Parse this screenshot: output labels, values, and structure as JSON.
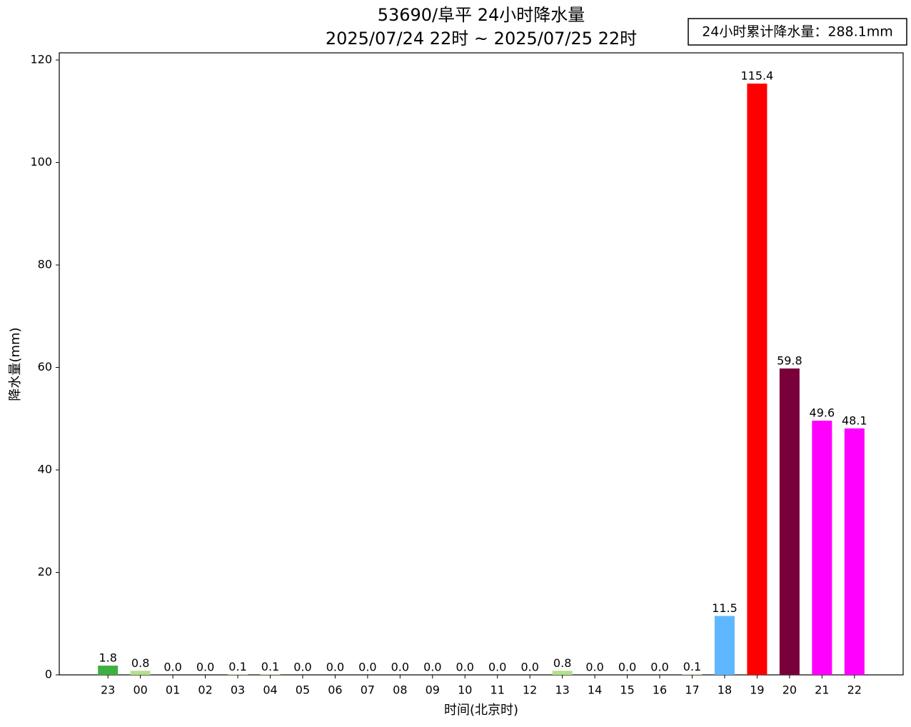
{
  "chart_data": {
    "type": "bar",
    "title": "53690/阜平 24小时降水量",
    "subtitle": "2025/07/24 22时 ~ 2025/07/25 22时",
    "annotation": "24小时累计降水量：288.1mm",
    "xlabel": "时间(北京时)",
    "ylabel": "降水量(mm)",
    "categories": [
      "23",
      "00",
      "01",
      "02",
      "03",
      "04",
      "05",
      "06",
      "07",
      "08",
      "09",
      "10",
      "11",
      "12",
      "13",
      "14",
      "15",
      "16",
      "17",
      "18",
      "19",
      "20",
      "21",
      "22"
    ],
    "values": [
      1.8,
      0.8,
      0,
      0,
      0.1,
      0.1,
      0,
      0,
      0,
      0,
      0,
      0,
      0,
      0,
      0.8,
      0,
      0,
      0,
      0.1,
      11.5,
      115.4,
      59.8,
      49.6,
      48.1
    ],
    "value_labels": [
      "1.8",
      "0.8",
      "0.0",
      "0.0",
      "0.1",
      "0.1",
      "0.0",
      "0.0",
      "0.0",
      "0.0",
      "0.0",
      "0.0",
      "0.0",
      "0.0",
      "0.8",
      "0.0",
      "0.0",
      "0.0",
      "0.1",
      "11.5",
      "115.4",
      "59.8",
      "49.6",
      "48.1"
    ],
    "colors": [
      "#3cb043",
      "#b4e08c",
      "#b4e08c",
      "#b4e08c",
      "#b4e08c",
      "#b4e08c",
      "#b4e08c",
      "#b4e08c",
      "#b4e08c",
      "#b4e08c",
      "#b4e08c",
      "#b4e08c",
      "#b4e08c",
      "#b4e08c",
      "#b4e08c",
      "#b4e08c",
      "#b4e08c",
      "#b4e08c",
      "#b4e08c",
      "#5fb8ff",
      "#ff0000",
      "#7a003c",
      "#ff00ff",
      "#ff00ff"
    ],
    "ylim": [
      0,
      121.4
    ],
    "yticks": [
      0,
      20,
      40,
      60,
      80,
      100,
      120
    ],
    "grid": false
  }
}
